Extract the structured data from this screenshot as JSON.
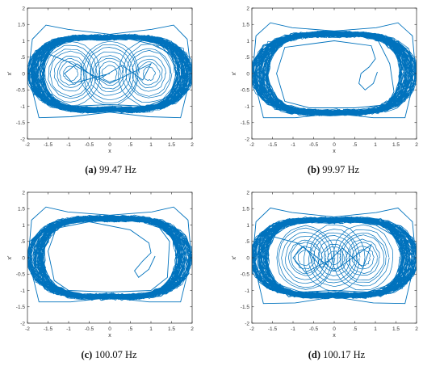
{
  "figure": {
    "panels": [
      {
        "letter": "(a)",
        "label": "99.47 Hz"
      },
      {
        "letter": "(b)",
        "label": "99.97 Hz"
      },
      {
        "letter": "(c)",
        "label": "100.07 Hz"
      },
      {
        "letter": "(d)",
        "label": "100.17 Hz"
      }
    ]
  },
  "style": {
    "series_color": "#0072BD",
    "axis_color": "#262626"
  },
  "chart_data": [
    {
      "type": "line",
      "title": "",
      "caption": "(a) 99.47 Hz",
      "xlabel": "x",
      "ylabel": "x'",
      "xlim": [
        -2,
        2
      ],
      "ylim": [
        -2,
        2
      ],
      "xticks": [
        -2,
        -1.5,
        -1,
        -0.5,
        0,
        0.5,
        1,
        1.5,
        2
      ],
      "yticks": [
        -2,
        -1.5,
        -1,
        -0.5,
        0,
        0.5,
        1,
        1.5,
        2
      ],
      "grid": false,
      "pattern": "phase-portrait, dense outer band with inner loops around x=-1, 0 and 1",
      "envelope": {
        "x_extent": 1.95,
        "y_at_center": 1.15,
        "y_at_edge": 1.65
      },
      "x": [
        0.0,
        1.02,
        1.55,
        1.88,
        1.98,
        1.72,
        0.95,
        0.0,
        -0.95,
        -1.72,
        -1.98,
        -1.88,
        -1.55,
        -1.02,
        0.0,
        1.0,
        1.5,
        1.8,
        1.5,
        0.9,
        0.0,
        -0.9,
        -1.5,
        -1.8,
        -1.5,
        -1.0,
        -0.5,
        0.0,
        0.5,
        1.0,
        0.8,
        0.3,
        -0.3,
        -0.8,
        -1.1,
        -0.9,
        0.0
      ],
      "y": [
        1.2,
        1.35,
        1.48,
        1.05,
        0.0,
        -1.35,
        -1.32,
        -1.18,
        -1.32,
        -1.35,
        0.0,
        1.05,
        1.48,
        1.35,
        1.2,
        0.9,
        0.6,
        0.0,
        -0.7,
        -1.0,
        -0.95,
        -1.0,
        -0.7,
        0.0,
        0.6,
        0.35,
        0.0,
        -0.3,
        0.0,
        0.3,
        -0.2,
        0.25,
        -0.2,
        0.3,
        0.0,
        -0.3,
        0.0
      ]
    },
    {
      "type": "line",
      "title": "",
      "caption": "(b) 99.97 Hz",
      "xlabel": "x",
      "ylabel": "x'",
      "xlim": [
        -2,
        2
      ],
      "ylim": [
        -2,
        2
      ],
      "xticks": [
        -2,
        -1.5,
        -1,
        -0.5,
        0,
        0.5,
        1,
        1.5,
        2
      ],
      "yticks": [
        -2,
        -1.5,
        -1,
        -0.5,
        0,
        0.5,
        1,
        1.5,
        2
      ],
      "grid": false,
      "pattern": "phase-portrait, dense outer band with open center and transient loop near x=0.8",
      "envelope": {
        "x_extent": 1.95,
        "y_at_center": 1.25,
        "y_at_edge": 1.7
      },
      "x": [
        0.0,
        1.02,
        1.55,
        1.9,
        1.98,
        1.72,
        0.95,
        0.0,
        -0.95,
        -1.72,
        -1.98,
        -1.9,
        -1.55,
        -1.02,
        0.0,
        1.05,
        1.35,
        1.45,
        1.3,
        0.5,
        -0.6,
        -1.2,
        -1.4,
        -1.2,
        0.0,
        0.9,
        1.0,
        0.85,
        0.65,
        0.6,
        0.75,
        0.95,
        1.05
      ],
      "y": [
        1.3,
        1.4,
        1.55,
        1.15,
        0.0,
        -1.35,
        -1.35,
        -1.22,
        -1.35,
        -1.35,
        0.0,
        1.15,
        1.55,
        1.4,
        1.3,
        1.05,
        0.3,
        -0.55,
        -0.95,
        -1.05,
        -1.05,
        -0.85,
        0.0,
        0.8,
        1.0,
        0.85,
        0.45,
        0.2,
        0.0,
        -0.3,
        -0.5,
        -0.3,
        0.05
      ]
    },
    {
      "type": "line",
      "title": "",
      "caption": "(c) 100.07 Hz",
      "xlabel": "x",
      "ylabel": "x'",
      "xlim": [
        -2,
        2
      ],
      "ylim": [
        -2,
        2
      ],
      "xticks": [
        -2,
        -1.5,
        -1,
        -0.5,
        0,
        0.5,
        1,
        1.5,
        2
      ],
      "yticks": [
        -2,
        -1.5,
        -1,
        -0.5,
        0,
        0.5,
        1,
        1.5,
        2
      ],
      "grid": false,
      "pattern": "phase-portrait, dense outer band with open center and transient loop near x=0.8",
      "envelope": {
        "x_extent": 1.95,
        "y_at_center": 1.25,
        "y_at_edge": 1.7
      },
      "x": [
        0.0,
        1.02,
        1.55,
        1.9,
        1.98,
        1.72,
        0.95,
        0.0,
        -0.95,
        -1.72,
        -1.98,
        -1.9,
        -1.55,
        -1.02,
        0.0,
        1.1,
        1.45,
        1.4,
        1.0,
        0.0,
        -1.0,
        -1.35,
        -1.5,
        -1.3,
        -0.5,
        0.5,
        0.95,
        1.0,
        0.8,
        0.6,
        0.7,
        0.95,
        1.1
      ],
      "y": [
        1.3,
        1.4,
        1.55,
        1.15,
        0.0,
        -1.35,
        -1.35,
        -1.22,
        -1.35,
        -1.35,
        0.0,
        1.15,
        1.55,
        1.4,
        1.3,
        1.1,
        0.5,
        -0.6,
        -1.0,
        -1.05,
        -1.0,
        -0.7,
        0.2,
        0.9,
        1.1,
        0.85,
        0.45,
        0.15,
        -0.1,
        -0.4,
        -0.6,
        -0.35,
        0.05
      ]
    },
    {
      "type": "line",
      "title": "",
      "caption": "(d) 100.17 Hz",
      "xlabel": "x",
      "ylabel": "x'",
      "xlim": [
        -2,
        2
      ],
      "ylim": [
        -2,
        2
      ],
      "xticks": [
        -2,
        -1.5,
        -1,
        -0.5,
        0,
        0.5,
        1,
        1.5,
        2
      ],
      "yticks": [
        -2,
        -1.5,
        -1,
        -0.5,
        0,
        0.5,
        1,
        1.5,
        2
      ],
      "grid": false,
      "pattern": "phase-portrait, dense outer band with inner loops around x=-0.7, 0 and 0.7",
      "envelope": {
        "x_extent": 1.97,
        "y_at_center": 1.2,
        "y_at_edge": 1.7
      },
      "x": [
        0.0,
        1.02,
        1.55,
        1.9,
        1.98,
        1.72,
        0.95,
        0.0,
        -0.95,
        -1.72,
        -1.98,
        -1.9,
        -1.55,
        -1.02,
        0.0,
        1.0,
        1.55,
        1.7,
        1.4,
        0.8,
        0.0,
        -0.8,
        -1.4,
        -1.7,
        -1.5,
        -0.9,
        -0.4,
        0.0,
        0.45,
        0.9,
        0.7,
        0.2,
        -0.3,
        -0.75,
        -1.0,
        -0.7,
        0.0
      ],
      "y": [
        1.25,
        1.38,
        1.52,
        1.1,
        0.0,
        -1.4,
        -1.38,
        -1.2,
        -1.38,
        -1.4,
        0.0,
        1.1,
        1.52,
        1.38,
        1.25,
        1.0,
        0.6,
        0.0,
        -0.8,
        -1.05,
        -1.0,
        -1.05,
        -0.8,
        0.0,
        0.65,
        0.45,
        0.0,
        -0.4,
        0.0,
        0.4,
        -0.3,
        0.3,
        -0.3,
        0.35,
        0.0,
        -0.45,
        0.0
      ]
    }
  ]
}
